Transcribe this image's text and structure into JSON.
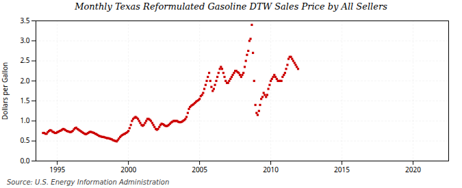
{
  "chart_data": {
    "type": "scatter",
    "title": "Monthly Texas Reformulated Gasoline DTW Sales Price by All Sellers",
    "ylabel": "Dollars per Gallon",
    "source": "Source: U.S. Energy Information Administration",
    "color": "#cc0000",
    "marker": "square",
    "grid": true,
    "xlim": [
      1993.5,
      2022.5
    ],
    "ylim": [
      0.0,
      3.5
    ],
    "xticks": [
      1995,
      2000,
      2005,
      2010,
      2015,
      2020
    ],
    "yticks": [
      {
        "value": 0.0,
        "label": "0.0"
      },
      0.5,
      {
        "value": 1.0,
        "label": "1.0"
      },
      1.5,
      {
        "value": 2.0,
        "label": "2.0"
      },
      2.5,
      {
        "value": 3.0,
        "label": "3.0"
      },
      3.5
    ],
    "x": [
      1994.0,
      1994.08,
      1994.17,
      1994.25,
      1994.33,
      1994.42,
      1994.5,
      1994.58,
      1994.67,
      1994.75,
      1994.83,
      1994.92,
      1995.0,
      1995.08,
      1995.17,
      1995.25,
      1995.33,
      1995.42,
      1995.5,
      1995.58,
      1995.67,
      1995.75,
      1995.83,
      1995.92,
      1996.0,
      1996.08,
      1996.17,
      1996.25,
      1996.33,
      1996.42,
      1996.5,
      1996.58,
      1996.67,
      1996.75,
      1996.83,
      1996.92,
      1997.0,
      1997.08,
      1997.17,
      1997.25,
      1997.33,
      1997.42,
      1997.5,
      1997.58,
      1997.67,
      1997.75,
      1997.83,
      1997.92,
      1998.0,
      1998.08,
      1998.17,
      1998.25,
      1998.33,
      1998.42,
      1998.5,
      1998.58,
      1998.67,
      1998.75,
      1998.83,
      1998.92,
      1999.0,
      1999.08,
      1999.17,
      1999.25,
      1999.33,
      1999.42,
      1999.5,
      1999.58,
      1999.67,
      1999.75,
      1999.83,
      1999.92,
      2000.0,
      2000.08,
      2000.17,
      2000.25,
      2000.33,
      2000.42,
      2000.5,
      2000.58,
      2000.67,
      2000.75,
      2000.83,
      2000.92,
      2001.0,
      2001.08,
      2001.17,
      2001.25,
      2001.33,
      2001.42,
      2001.5,
      2001.58,
      2001.67,
      2001.75,
      2001.83,
      2001.92,
      2002.0,
      2002.08,
      2002.17,
      2002.25,
      2002.33,
      2002.42,
      2002.5,
      2002.58,
      2002.67,
      2002.75,
      2002.83,
      2002.92,
      2003.0,
      2003.08,
      2003.17,
      2003.25,
      2003.33,
      2003.42,
      2003.5,
      2003.58,
      2003.67,
      2003.75,
      2003.83,
      2003.92,
      2004.0,
      2004.08,
      2004.17,
      2004.25,
      2004.33,
      2004.42,
      2004.5,
      2004.58,
      2004.67,
      2004.75,
      2004.83,
      2004.92,
      2005.0,
      2005.08,
      2005.17,
      2005.25,
      2005.33,
      2005.42,
      2005.5,
      2005.58,
      2005.67,
      2005.75,
      2005.83,
      2005.92,
      2006.0,
      2006.08,
      2006.17,
      2006.25,
      2006.33,
      2006.42,
      2006.5,
      2006.58,
      2006.67,
      2006.75,
      2006.83,
      2006.92,
      2007.0,
      2007.08,
      2007.17,
      2007.25,
      2007.33,
      2007.42,
      2007.5,
      2007.58,
      2007.67,
      2007.75,
      2007.83,
      2007.92,
      2008.0,
      2008.08,
      2008.17,
      2008.25,
      2008.33,
      2008.42,
      2008.5,
      2008.58,
      2008.67,
      2008.75,
      2008.83,
      2008.92,
      2009.0,
      2009.08,
      2009.17,
      2009.25,
      2009.33,
      2009.42,
      2009.5,
      2009.58,
      2009.67,
      2009.75,
      2009.83,
      2009.92,
      2010.0,
      2010.08,
      2010.17,
      2010.25,
      2010.33,
      2010.42,
      2010.5,
      2010.58,
      2010.67,
      2010.75,
      2010.83,
      2010.92,
      2011.0,
      2011.08,
      2011.17,
      2011.25,
      2011.33,
      2011.42,
      2011.5,
      2011.58,
      2011.67,
      2011.75,
      2011.83,
      2011.92
    ],
    "values": [
      0.7,
      0.7,
      0.68,
      0.68,
      0.72,
      0.75,
      0.77,
      0.76,
      0.73,
      0.72,
      0.7,
      0.7,
      0.72,
      0.73,
      0.75,
      0.76,
      0.78,
      0.8,
      0.79,
      0.77,
      0.75,
      0.74,
      0.73,
      0.72,
      0.73,
      0.75,
      0.79,
      0.82,
      0.83,
      0.8,
      0.78,
      0.76,
      0.74,
      0.72,
      0.7,
      0.68,
      0.67,
      0.68,
      0.7,
      0.72,
      0.73,
      0.72,
      0.71,
      0.7,
      0.68,
      0.67,
      0.65,
      0.63,
      0.62,
      0.61,
      0.6,
      0.6,
      0.59,
      0.58,
      0.57,
      0.57,
      0.56,
      0.55,
      0.54,
      0.52,
      0.51,
      0.5,
      0.49,
      0.52,
      0.56,
      0.6,
      0.63,
      0.65,
      0.67,
      0.68,
      0.7,
      0.72,
      0.75,
      0.82,
      0.9,
      1.0,
      1.05,
      1.08,
      1.1,
      1.08,
      1.05,
      1.0,
      0.95,
      0.9,
      0.88,
      0.9,
      0.95,
      1.0,
      1.05,
      1.05,
      1.03,
      1.0,
      0.95,
      0.9,
      0.85,
      0.8,
      0.78,
      0.8,
      0.85,
      0.9,
      0.93,
      0.92,
      0.9,
      0.88,
      0.87,
      0.88,
      0.9,
      0.93,
      0.96,
      0.98,
      1.0,
      1.0,
      1.0,
      1.0,
      0.98,
      0.97,
      0.97,
      0.98,
      1.0,
      1.02,
      1.05,
      1.1,
      1.2,
      1.3,
      1.35,
      1.38,
      1.4,
      1.42,
      1.45,
      1.48,
      1.5,
      1.52,
      1.55,
      1.62,
      1.65,
      1.7,
      1.8,
      1.9,
      2.0,
      2.1,
      2.2,
      2.0,
      1.85,
      1.75,
      1.8,
      1.9,
      2.0,
      2.1,
      2.2,
      2.3,
      2.35,
      2.3,
      2.2,
      2.1,
      2.0,
      1.95,
      1.95,
      2.0,
      2.05,
      2.1,
      2.15,
      2.2,
      2.25,
      2.25,
      2.22,
      2.2,
      2.15,
      2.1,
      2.15,
      2.2,
      2.35,
      2.5,
      2.65,
      2.75,
      3.0,
      3.05,
      3.4,
      2.7,
      2.0,
      1.4,
      1.2,
      1.15,
      1.25,
      1.4,
      1.55,
      1.6,
      1.7,
      1.65,
      1.6,
      1.65,
      1.8,
      1.9,
      2.0,
      2.05,
      2.1,
      2.15,
      2.1,
      2.05,
      2.0,
      2.0,
      2.0,
      2.0,
      2.1,
      2.15,
      2.2,
      2.3,
      2.4,
      2.55,
      2.6,
      2.6,
      2.55,
      2.5,
      2.45,
      2.4,
      2.35,
      2.3
    ]
  }
}
